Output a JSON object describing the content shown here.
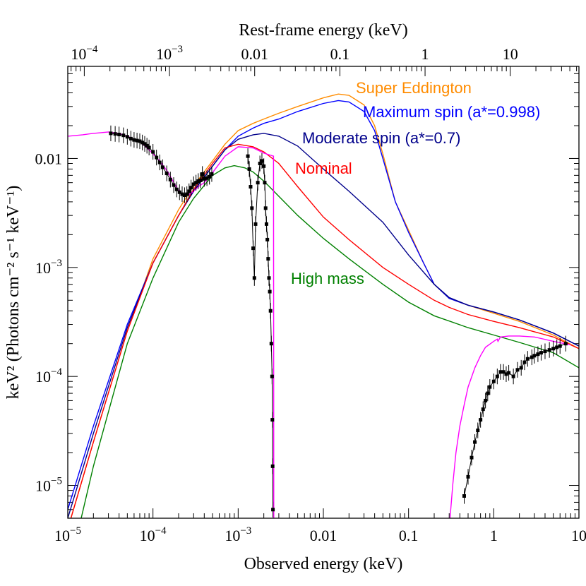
{
  "chart_data": {
    "type": "line",
    "xlabel": "Observed energy (keV)",
    "x2label": "Rest-frame energy (keV)",
    "ylabel": "keV² (Photons cm⁻² s⁻¹ keV⁻¹)",
    "xscale": "log",
    "yscale": "log",
    "xlim": [
      1e-05,
      10
    ],
    "ylim": [
      5e-06,
      0.07
    ],
    "x2_offset_factor": 6.4,
    "x_ticks": [
      {
        "value": 1e-05,
        "base": "10",
        "exp": "−5"
      },
      {
        "value": 0.0001,
        "base": "10",
        "exp": "−4"
      },
      {
        "value": 0.001,
        "base": "10",
        "exp": "−3"
      },
      {
        "value": 0.01,
        "base": "0.01",
        "exp": ""
      },
      {
        "value": 0.1,
        "base": "0.1",
        "exp": ""
      },
      {
        "value": 1,
        "base": "1",
        "exp": ""
      },
      {
        "value": 10,
        "base": "10",
        "exp": ""
      }
    ],
    "x2_ticks": [
      {
        "value": 0.0001,
        "base": "10",
        "exp": "−4"
      },
      {
        "value": 0.001,
        "base": "10",
        "exp": "−3"
      },
      {
        "value": 0.01,
        "base": "0.01",
        "exp": ""
      },
      {
        "value": 0.1,
        "base": "0.1",
        "exp": ""
      },
      {
        "value": 1,
        "base": "1",
        "exp": ""
      },
      {
        "value": 10,
        "base": "10",
        "exp": ""
      }
    ],
    "y_ticks": [
      {
        "value": 1e-05,
        "base": "10",
        "exp": "−5"
      },
      {
        "value": 0.0001,
        "base": "10",
        "exp": "−4"
      },
      {
        "value": 0.001,
        "base": "10",
        "exp": "−3"
      },
      {
        "value": 0.01,
        "base": "0.01",
        "exp": ""
      }
    ],
    "series": [
      {
        "name": "Super Eddington",
        "color": "#ff8c00",
        "points": [
          [
            1e-05,
            4e-06
          ],
          [
            2e-05,
            2.5e-05
          ],
          [
            5e-05,
            0.00026
          ],
          [
            0.0001,
            0.0012
          ],
          [
            0.0002,
            0.0034
          ],
          [
            0.0003,
            0.0056
          ],
          [
            0.0005,
            0.0095
          ],
          [
            0.0007,
            0.0135
          ],
          [
            0.001,
            0.018
          ],
          [
            0.0015,
            0.021
          ],
          [
            0.002,
            0.023
          ],
          [
            0.003,
            0.026
          ],
          [
            0.005,
            0.03
          ],
          [
            0.01,
            0.036
          ],
          [
            0.015,
            0.039
          ],
          [
            0.02,
            0.038
          ],
          [
            0.03,
            0.031
          ],
          [
            0.04,
            0.02
          ],
          [
            0.05,
            0.011
          ],
          [
            0.07,
            0.004
          ],
          [
            0.1,
            0.0022
          ],
          [
            0.15,
            0.0011
          ],
          [
            0.2,
            0.0007
          ],
          [
            0.3,
            0.00052
          ],
          [
            0.5,
            0.00045
          ],
          [
            1,
            0.00038
          ],
          [
            2,
            0.00032
          ],
          [
            5,
            0.00024
          ],
          [
            10,
            0.00018
          ]
        ]
      },
      {
        "name": "Maximum spin (a*=0.998)",
        "color": "#0000ff",
        "points": [
          [
            1e-05,
            6e-06
          ],
          [
            2e-05,
            3.5e-05
          ],
          [
            5e-05,
            0.0003
          ],
          [
            0.0001,
            0.0011
          ],
          [
            0.0002,
            0.003
          ],
          [
            0.0003,
            0.005
          ],
          [
            0.0005,
            0.0085
          ],
          [
            0.0007,
            0.012
          ],
          [
            0.001,
            0.016
          ],
          [
            0.0015,
            0.019
          ],
          [
            0.002,
            0.021
          ],
          [
            0.003,
            0.023
          ],
          [
            0.005,
            0.027
          ],
          [
            0.01,
            0.032
          ],
          [
            0.015,
            0.034
          ],
          [
            0.02,
            0.033
          ],
          [
            0.03,
            0.027
          ],
          [
            0.04,
            0.018
          ],
          [
            0.05,
            0.01
          ],
          [
            0.07,
            0.004
          ],
          [
            0.1,
            0.0021
          ],
          [
            0.15,
            0.0011
          ],
          [
            0.2,
            0.0007
          ],
          [
            0.3,
            0.00052
          ],
          [
            0.5,
            0.00045
          ],
          [
            1,
            0.00039
          ],
          [
            2,
            0.00033
          ],
          [
            5,
            0.00025
          ],
          [
            10,
            0.00019
          ]
        ]
      },
      {
        "name": "Moderate spin (a*=0.7)",
        "color": "#00008b",
        "points": [
          [
            1e-05,
            5e-06
          ],
          [
            2e-05,
            3e-05
          ],
          [
            5e-05,
            0.00028
          ],
          [
            0.0001,
            0.0011
          ],
          [
            0.0002,
            0.003
          ],
          [
            0.0003,
            0.005
          ],
          [
            0.0005,
            0.0085
          ],
          [
            0.0007,
            0.012
          ],
          [
            0.001,
            0.015
          ],
          [
            0.0015,
            0.0165
          ],
          [
            0.002,
            0.017
          ],
          [
            0.003,
            0.016
          ],
          [
            0.005,
            0.013
          ],
          [
            0.01,
            0.008
          ],
          [
            0.02,
            0.005
          ],
          [
            0.05,
            0.0026
          ],
          [
            0.1,
            0.0013
          ],
          [
            0.2,
            0.0007
          ],
          [
            0.3,
            0.00053
          ],
          [
            0.5,
            0.00045
          ],
          [
            1,
            0.00039
          ],
          [
            2,
            0.00033
          ],
          [
            5,
            0.00025
          ],
          [
            10,
            0.00019
          ]
        ]
      },
      {
        "name": "Nominal",
        "color": "#ff0000",
        "points": [
          [
            1e-05,
            4e-06
          ],
          [
            2e-05,
            2.5e-05
          ],
          [
            5e-05,
            0.00026
          ],
          [
            0.0001,
            0.0011
          ],
          [
            0.0002,
            0.003
          ],
          [
            0.0003,
            0.0052
          ],
          [
            0.0005,
            0.009
          ],
          [
            0.0007,
            0.0125
          ],
          [
            0.001,
            0.0135
          ],
          [
            0.0015,
            0.0128
          ],
          [
            0.002,
            0.0115
          ],
          [
            0.003,
            0.009
          ],
          [
            0.005,
            0.0055
          ],
          [
            0.01,
            0.0029
          ],
          [
            0.02,
            0.0018
          ],
          [
            0.05,
            0.001
          ],
          [
            0.1,
            0.0007
          ],
          [
            0.2,
            0.0005
          ],
          [
            0.3,
            0.00043
          ],
          [
            0.5,
            0.00037
          ],
          [
            1,
            0.00032
          ],
          [
            2,
            0.00028
          ],
          [
            5,
            0.00023
          ],
          [
            10,
            0.00018
          ]
        ]
      },
      {
        "name": "High mass",
        "color": "#008000",
        "points": [
          [
            1e-05,
            1.5e-06
          ],
          [
            2e-05,
            1.5e-05
          ],
          [
            5e-05,
            0.0002
          ],
          [
            0.0001,
            0.0008
          ],
          [
            0.0002,
            0.0026
          ],
          [
            0.0003,
            0.0043
          ],
          [
            0.0005,
            0.007
          ],
          [
            0.0007,
            0.0082
          ],
          [
            0.0009,
            0.0086
          ],
          [
            0.0012,
            0.0082
          ],
          [
            0.0015,
            0.0075
          ],
          [
            0.002,
            0.0062
          ],
          [
            0.003,
            0.0045
          ],
          [
            0.005,
            0.003
          ],
          [
            0.01,
            0.00185
          ],
          [
            0.02,
            0.0012
          ],
          [
            0.05,
            0.0007
          ],
          [
            0.1,
            0.00048
          ],
          [
            0.2,
            0.00036
          ],
          [
            0.5,
            0.00028
          ],
          [
            1,
            0.00024
          ],
          [
            2,
            0.000205
          ],
          [
            5,
            0.000165
          ],
          [
            10,
            0.00012
          ]
        ]
      },
      {
        "name": "",
        "color": "#ff00ff",
        "points": [
          [
            1e-05,
            0.016
          ],
          [
            1.5e-05,
            0.0165
          ],
          [
            2e-05,
            0.017
          ],
          [
            3e-05,
            0.0175
          ],
          [
            4e-05,
            0.017
          ],
          [
            5e-05,
            0.016
          ],
          [
            7e-05,
            0.0143
          ],
          [
            9e-05,
            0.012
          ],
          [
            0.00012,
            0.0095
          ],
          [
            0.00015,
            0.0075
          ],
          [
            0.00018,
            0.0058
          ],
          [
            0.00021,
            0.0048
          ],
          [
            0.00024,
            0.0046
          ],
          [
            0.00027,
            0.0047
          ],
          [
            0.0003,
            0.005
          ],
          [
            0.00035,
            0.0056
          ],
          [
            0.0004,
            0.006
          ],
          [
            0.0005,
            0.0074
          ],
          [
            0.0007,
            0.0105
          ],
          [
            0.001,
            0.0128
          ],
          [
            0.0015,
            0.0125
          ],
          [
            0.002,
            0.0112
          ],
          [
            0.0026,
            0.0105
          ],
          [
            0.00262,
            4e-06
          ]
        ],
        "points2": [
          [
            0.3,
            4e-06
          ],
          [
            0.33,
            1e-05
          ],
          [
            0.36,
            2e-05
          ],
          [
            0.4,
            3.5e-05
          ],
          [
            0.45,
            5.5e-05
          ],
          [
            0.5,
            8e-05
          ],
          [
            0.6,
            0.00012
          ],
          [
            0.7,
            0.000155
          ],
          [
            0.8,
            0.000185
          ],
          [
            1,
            0.00021
          ],
          [
            1.1,
            0.00022
          ],
          [
            1.12,
            0.00021
          ],
          [
            1.2,
            0.00023
          ],
          [
            1.5,
            0.000235
          ],
          [
            2,
            0.000235
          ],
          [
            3,
            0.00023
          ],
          [
            5,
            0.00021
          ],
          [
            8,
            0.000195
          ]
        ]
      }
    ],
    "observed_data": [
      {
        "segment": "optical-uv",
        "points": [
          [
            3.2e-05,
            0.017
          ],
          [
            3.6e-05,
            0.0168
          ],
          [
            4e-05,
            0.0166
          ],
          [
            4.5e-05,
            0.0163
          ],
          [
            5e-05,
            0.0158
          ],
          [
            5.5e-05,
            0.0152
          ],
          [
            6e-05,
            0.0148
          ],
          [
            6.5e-05,
            0.0146
          ],
          [
            7e-05,
            0.0144
          ],
          [
            7.5e-05,
            0.014
          ],
          [
            8e-05,
            0.0136
          ],
          [
            8.5e-05,
            0.0131
          ],
          [
            9e-05,
            0.0126
          ],
          [
            0.0001,
            0.0115
          ],
          [
            0.00011,
            0.0102
          ],
          [
            0.00012,
            0.0092
          ],
          [
            0.00013,
            0.0083
          ],
          [
            0.000145,
            0.0073
          ],
          [
            0.00016,
            0.0064
          ],
          [
            0.000175,
            0.0057
          ],
          [
            0.00019,
            0.0052
          ],
          [
            0.000205,
            0.0049
          ],
          [
            0.00022,
            0.0047
          ],
          [
            0.000235,
            0.0046
          ],
          [
            0.00025,
            0.0047
          ],
          [
            0.000265,
            0.005
          ],
          [
            0.00028,
            0.0054
          ],
          [
            0.0003,
            0.0058
          ],
          [
            0.00032,
            0.006
          ],
          [
            0.00034,
            0.0062
          ],
          [
            0.00036,
            0.0063
          ],
          [
            0.00038,
            0.0072
          ],
          [
            0.0004,
            0.0065
          ],
          [
            0.00043,
            0.0066
          ],
          [
            0.00046,
            0.0068
          ],
          [
            0.00049,
            0.0072
          ]
        ]
      },
      {
        "segment": "uv-drop",
        "points": [
          [
            0.0013,
            0.0105
          ],
          [
            0.00135,
            0.008
          ],
          [
            0.0014,
            0.0055
          ],
          [
            0.00145,
            0.0035
          ],
          [
            0.0015,
            0.0015
          ],
          [
            0.00155,
            0.0008
          ],
          [
            0.0016,
            0.0025
          ],
          [
            0.0017,
            0.006
          ],
          [
            0.0018,
            0.009
          ],
          [
            0.0019,
            0.0095
          ],
          [
            0.002,
            0.0085
          ],
          [
            0.00205,
            0.006
          ],
          [
            0.0021,
            0.0035
          ],
          [
            0.00215,
            0.0025
          ],
          [
            0.0022,
            0.0018
          ],
          [
            0.00225,
            0.0012
          ],
          [
            0.0023,
            0.0008
          ],
          [
            0.00235,
            0.0006
          ],
          [
            0.0024,
            0.0004
          ],
          [
            0.00245,
            0.0002
          ],
          [
            0.0025,
            0.0001
          ],
          [
            0.00252,
            4e-05
          ],
          [
            0.00254,
            1.5e-05
          ],
          [
            0.00256,
            6e-06
          ]
        ]
      },
      {
        "segment": "x-ray",
        "points": [
          [
            0.45,
            8e-06
          ],
          [
            0.5,
            1.2e-05
          ],
          [
            0.55,
            1.8e-05
          ],
          [
            0.6,
            2.5e-05
          ],
          [
            0.65,
            3.2e-05
          ],
          [
            0.7,
            4e-05
          ],
          [
            0.75,
            5e-05
          ],
          [
            0.8,
            6e-05
          ],
          [
            0.85,
            7e-05
          ],
          [
            0.9,
            8e-05
          ],
          [
            1,
            9e-05
          ],
          [
            1.1,
            0.0001
          ],
          [
            1.2,
            0.00011
          ],
          [
            1.3,
            0.00011
          ],
          [
            1.4,
            0.000105
          ],
          [
            1.5,
            0.000108
          ],
          [
            1.7,
            0.0001
          ],
          [
            1.9,
            0.000115
          ],
          [
            2.1,
            0.00012
          ],
          [
            2.3,
            0.000135
          ],
          [
            2.5,
            0.000145
          ],
          [
            2.8,
            0.00015
          ],
          [
            3,
            0.000155
          ],
          [
            3.3,
            0.00016
          ],
          [
            3.6,
            0.000165
          ],
          [
            4,
            0.00017
          ],
          [
            4.5,
            0.000175
          ],
          [
            5,
            0.00018
          ],
          [
            5.5,
            0.000185
          ],
          [
            6,
            0.00019
          ],
          [
            7,
            0.0002
          ]
        ]
      }
    ],
    "annotations": [
      {
        "text": "Super Eddington",
        "color": "#ff8c00"
      },
      {
        "text": "Maximum spin (a*=0.998)",
        "color": "#0000ff"
      },
      {
        "text": "Moderate spin (a*=0.7)",
        "color": "#00008b"
      },
      {
        "text": "Nominal",
        "color": "#ff0000"
      },
      {
        "text": "High mass",
        "color": "#008000"
      }
    ]
  }
}
